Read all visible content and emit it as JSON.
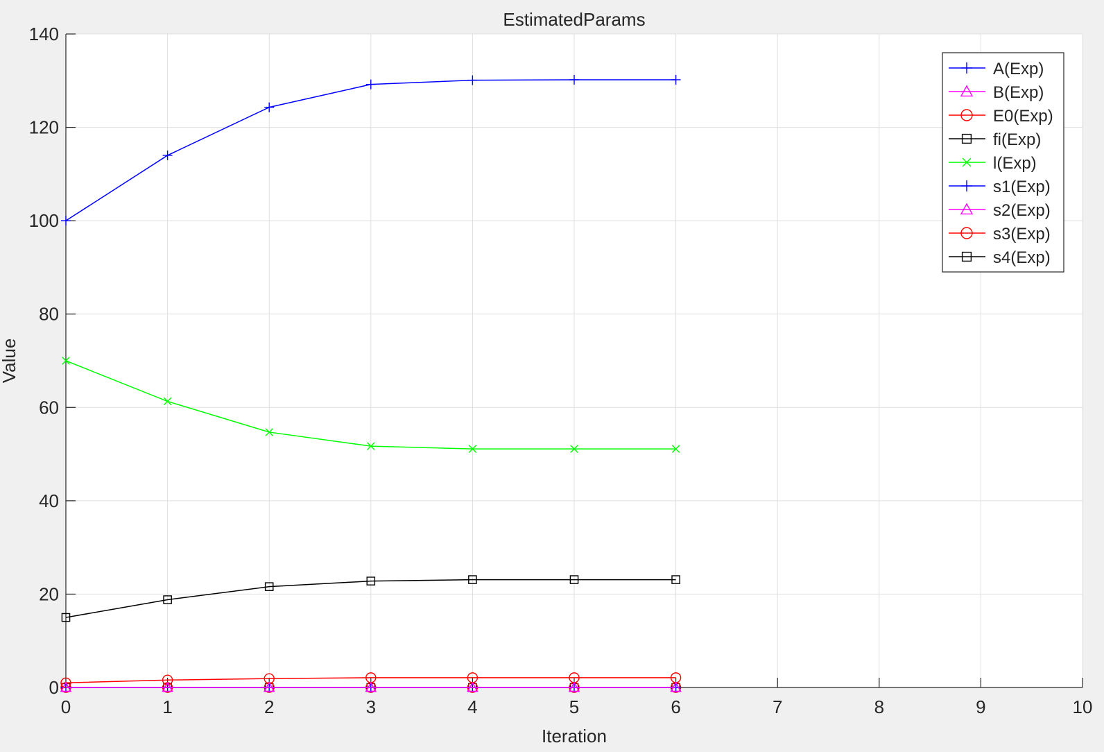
{
  "chart_data": {
    "type": "line",
    "title": "EstimatedParams",
    "xlabel": "Iteration",
    "ylabel": "Value",
    "xlim": [
      0,
      10
    ],
    "ylim": [
      0,
      140
    ],
    "xticks": [
      0,
      1,
      2,
      3,
      4,
      5,
      6,
      7,
      8,
      9,
      10
    ],
    "yticks": [
      0,
      20,
      40,
      60,
      80,
      100,
      120,
      140
    ],
    "grid": true,
    "legend_position": "top-right",
    "x": [
      0,
      1,
      2,
      3,
      4,
      5,
      6
    ],
    "series": [
      {
        "name": "A(Exp)",
        "color": "#0000ff",
        "marker": "plus",
        "values": [
          100,
          114,
          124.3,
          129.2,
          130.1,
          130.2,
          130.2
        ]
      },
      {
        "name": "B(Exp)",
        "color": "#ff00ff",
        "marker": "triangle",
        "values": [
          0,
          0,
          0,
          0,
          0,
          0,
          0
        ]
      },
      {
        "name": "E0(Exp)",
        "color": "#ff0000",
        "marker": "circle",
        "values": [
          1,
          1.6,
          1.9,
          2.1,
          2.1,
          2.1,
          2.1
        ]
      },
      {
        "name": "fi(Exp)",
        "color": "#000000",
        "marker": "square",
        "values": [
          15,
          18.8,
          21.6,
          22.8,
          23.1,
          23.1,
          23.1
        ]
      },
      {
        "name": "l(Exp)",
        "color": "#00ff00",
        "marker": "x",
        "values": [
          70,
          61.3,
          54.7,
          51.7,
          51.1,
          51.1,
          51.1
        ]
      },
      {
        "name": "s1(Exp)",
        "color": "#0000ff",
        "marker": "plus",
        "values": [
          0,
          0,
          0,
          0,
          0,
          0,
          0
        ]
      },
      {
        "name": "s2(Exp)",
        "color": "#ff00ff",
        "marker": "triangle",
        "values": [
          0,
          0,
          0,
          0,
          0,
          0,
          0
        ]
      },
      {
        "name": "s3(Exp)",
        "color": "#ff0000",
        "marker": "circle",
        "values": [
          0,
          0,
          0,
          0,
          0,
          0,
          0
        ]
      },
      {
        "name": "s4(Exp)",
        "color": "#000000",
        "marker": "square",
        "values": [
          0,
          0,
          0,
          0,
          0,
          0,
          0
        ]
      }
    ]
  }
}
